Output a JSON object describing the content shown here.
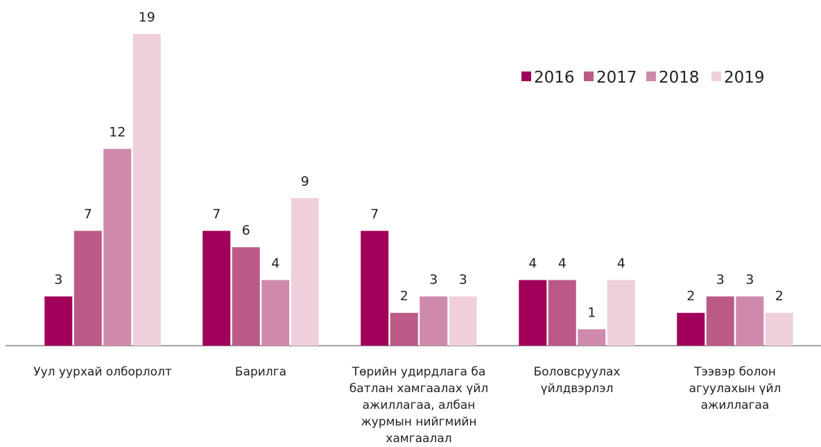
{
  "chart_data": {
    "type": "bar",
    "categories": [
      "Уул уурхай олборлолт",
      "Барилга",
      "Төрийн удирдлага ба\nбатлан хамгаалах үйл\nажиллагаа, албан\nжурмын нийгмийн\nхамгаалал",
      "Боловсруулах\nүйлдвэрлэл",
      "Тээвэр болон\nагуулахын үйл\nажиллагаа"
    ],
    "series": [
      {
        "name": "2016",
        "color": "#a0005a",
        "values": [
          3,
          7,
          7,
          4,
          2
        ]
      },
      {
        "name": "2017",
        "color": "#bb5a87",
        "values": [
          7,
          6,
          2,
          4,
          3
        ]
      },
      {
        "name": "2018",
        "color": "#cf8aab",
        "values": [
          12,
          4,
          3,
          1,
          3
        ]
      },
      {
        "name": "2019",
        "color": "#f0cfdd",
        "values": [
          19,
          9,
          3,
          4,
          2
        ]
      }
    ],
    "ylim": [
      0,
      19
    ],
    "legend": "top-right"
  }
}
